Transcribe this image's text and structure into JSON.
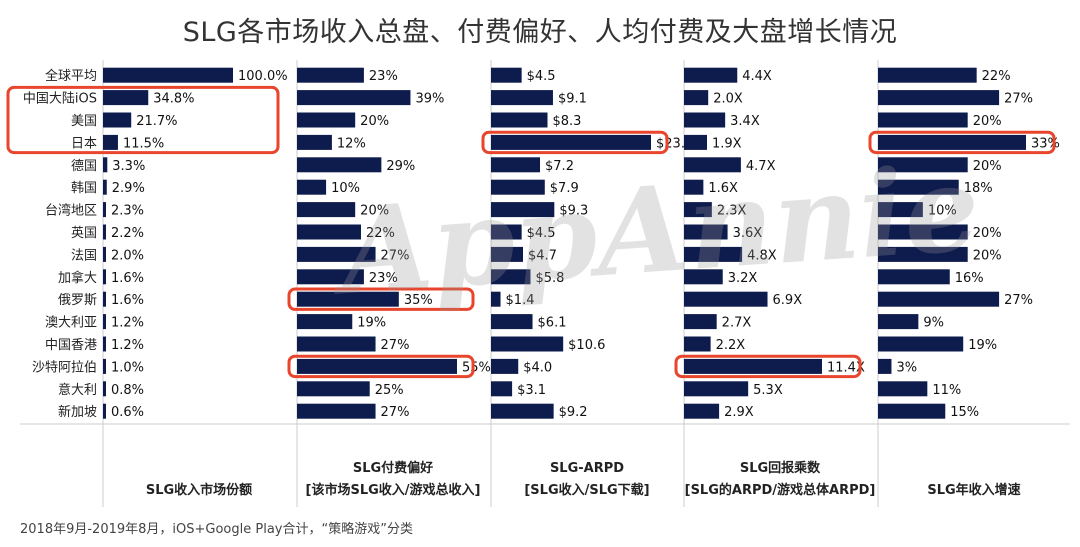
{
  "chart_data": {
    "type": "bar",
    "orientation": "horizontal",
    "title": "SLG各市场收入总盘、付费偏好、人均付费及大盘增长情况",
    "categories": [
      "全球平均",
      "中国大陆iOS",
      "美国",
      "日本",
      "德国",
      "韩国",
      "台湾地区",
      "英国",
      "法国",
      "加拿大",
      "俄罗斯",
      "澳大利亚",
      "中国香港",
      "沙特阿拉伯",
      "意大利",
      "新加坡"
    ],
    "series": [
      {
        "name": "SLG收入市场份额",
        "subtitle": "",
        "values": [
          100.0,
          34.8,
          21.7,
          11.5,
          3.3,
          2.9,
          2.3,
          2.2,
          2.0,
          1.6,
          1.6,
          1.2,
          1.2,
          1.0,
          0.8,
          0.6
        ],
        "labels": [
          "100.0%",
          "34.8%",
          "21.7%",
          "11.5%",
          "3.3%",
          "2.9%",
          "2.3%",
          "2.2%",
          "2.0%",
          "1.6%",
          "1.6%",
          "1.2%",
          "1.2%",
          "1.0%",
          "0.8%",
          "0.6%"
        ],
        "max": 100,
        "highlighted": [
          1,
          2,
          3
        ]
      },
      {
        "name": "SLG付费偏好",
        "subtitle": "[该市场SLG收入/游戏总收入]",
        "values": [
          23,
          39,
          20,
          12,
          29,
          10,
          20,
          22,
          27,
          23,
          35,
          19,
          27,
          55,
          25,
          27
        ],
        "labels": [
          "23%",
          "39%",
          "20%",
          "12%",
          "29%",
          "10%",
          "20%",
          "22%",
          "27%",
          "23%",
          "35%",
          "19%",
          "27%",
          "55%",
          "25%",
          "27%"
        ],
        "max": 55,
        "highlighted": [
          10,
          13
        ]
      },
      {
        "name": "SLG-ARPD",
        "subtitle": "[SLG收入/SLG下载]",
        "values": [
          4.5,
          9.1,
          8.3,
          23.5,
          7.2,
          7.9,
          9.3,
          4.5,
          4.7,
          5.8,
          1.4,
          6.1,
          10.6,
          4.0,
          3.1,
          9.2
        ],
        "labels": [
          "$4.5",
          "$9.1",
          "$8.3",
          "$23.5",
          "$7.2",
          "$7.9",
          "$9.3",
          "$4.5",
          "$4.7",
          "$5.8",
          "$1.4",
          "$6.1",
          "$10.6",
          "$4.0",
          "$3.1",
          "$9.2"
        ],
        "max": 23.5,
        "highlighted": [
          3
        ]
      },
      {
        "name": "SLG回报乘数",
        "subtitle": "[SLG的ARPD/游戏总体ARPD]",
        "values": [
          4.4,
          2.0,
          3.4,
          1.9,
          4.7,
          1.6,
          2.3,
          3.6,
          4.8,
          3.2,
          6.9,
          2.7,
          2.2,
          11.4,
          5.3,
          2.9
        ],
        "labels": [
          "4.4X",
          "2.0X",
          "3.4X",
          "1.9X",
          "4.7X",
          "1.6X",
          "2.3X",
          "3.6X",
          "4.8X",
          "3.2X",
          "6.9X",
          "2.7X",
          "2.2X",
          "11.4X",
          "5.3X",
          "2.9X"
        ],
        "max": 11.4,
        "highlighted": [
          13
        ]
      },
      {
        "name": "SLG年收入增速",
        "subtitle": "",
        "values": [
          22,
          27,
          20,
          33,
          20,
          18,
          10,
          20,
          20,
          16,
          27,
          9,
          19,
          3,
          11,
          15
        ],
        "labels": [
          "22%",
          "27%",
          "20%",
          "33%",
          "20%",
          "18%",
          "10%",
          "20%",
          "20%",
          "16%",
          "27%",
          "9%",
          "19%",
          "3%",
          "11%",
          "15%"
        ],
        "max": 33,
        "highlighted": [
          3
        ]
      }
    ],
    "colors": {
      "bar": "#0e1b4d",
      "highlight": "#e8452c",
      "divider": "#cccccc"
    },
    "footnote": "2018年9月-2019年8月，iOS+Google Play合计，“策略游戏”分类",
    "watermark": "AppAnnie"
  }
}
